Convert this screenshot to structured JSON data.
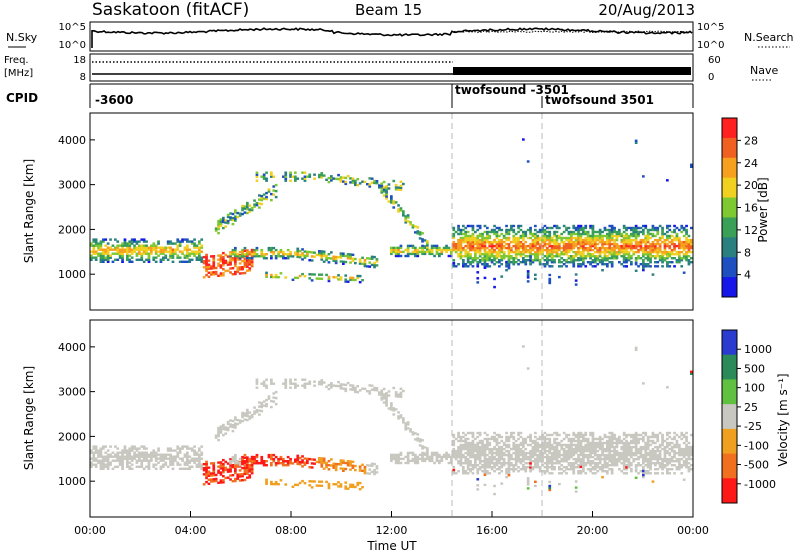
{
  "header": {
    "station": "Saskatoon (fitACF)",
    "beam": "Beam 15",
    "date": "20/Aug/2013"
  },
  "noise_panel": {
    "left_label": "N.Sky",
    "right_label": "N.Search",
    "left_ticks": [
      "10^5",
      "10^0"
    ],
    "right_ticks": [
      "10^5",
      "10^0"
    ]
  },
  "freq_panel": {
    "left_label_1": "Freq.",
    "left_label_2": "[MHz]",
    "right_label": "Nave",
    "left_ticks": [
      "18",
      "8"
    ],
    "right_ticks": [
      "60",
      "0"
    ]
  },
  "cpid_panel": {
    "label": "CPID",
    "entries": [
      "-3600",
      "twofsound -3501",
      "twofsound 3501"
    ]
  },
  "chart_data": [
    {
      "type": "heatmap",
      "name": "power",
      "xlabel": "",
      "ylabel": "Slant Range [km]",
      "xlim": [
        "00:00",
        "24:00"
      ],
      "ylim": [
        200,
        4600
      ],
      "y_ticks": [
        "1000",
        "2000",
        "3000",
        "4000"
      ],
      "colorbar": {
        "label": "Power [dB]",
        "ticks": [
          "4",
          "8",
          "12",
          "16",
          "20",
          "24",
          "28"
        ],
        "range": [
          0,
          31
        ],
        "colors": [
          "#1616e8",
          "#1e4fc0",
          "#2a7f7f",
          "#3aa058",
          "#7ec832",
          "#f0d020",
          "#f7a020",
          "#f06020",
          "#ff2020"
        ]
      }
    },
    {
      "type": "heatmap",
      "name": "velocity",
      "xlabel": "Time UT",
      "ylabel": "Slant Range [km]",
      "xlim": [
        "00:00",
        "24:00"
      ],
      "ylim": [
        200,
        4600
      ],
      "x_ticks": [
        "00:00",
        "04:00",
        "08:00",
        "12:00",
        "16:00",
        "20:00",
        "00:00"
      ],
      "y_ticks": [
        "1000",
        "2000",
        "3000",
        "4000"
      ],
      "colorbar": {
        "label": "Velocity [m s⁻¹]",
        "ticks": [
          "1000",
          "500",
          "100",
          "25",
          "-25",
          "-100",
          "-500",
          "-1000"
        ],
        "colors": [
          "#2a3cd0",
          "#2a8a5a",
          "#60c040",
          "#c8c8c0",
          "#f0a020",
          "#f07020",
          "#ff1818"
        ]
      }
    }
  ]
}
